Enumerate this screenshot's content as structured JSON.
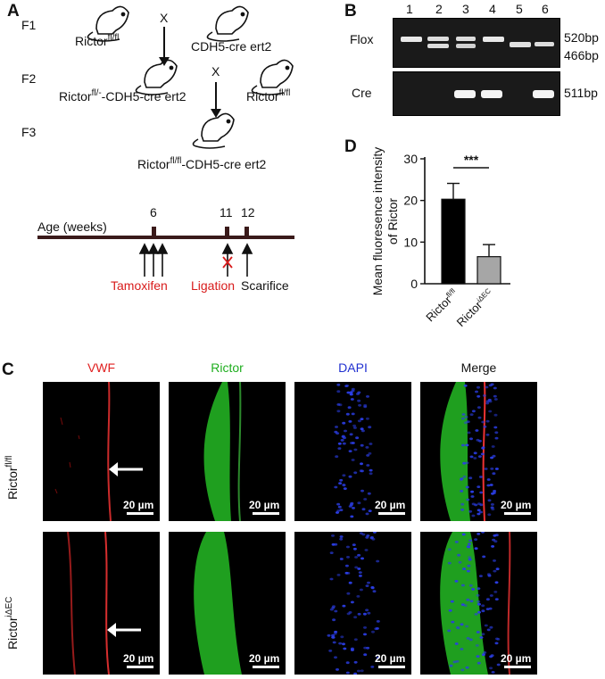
{
  "panelA": {
    "letter": "A",
    "gen_labels": [
      "F1",
      "F2",
      "F3"
    ],
    "cross_symbol": "X",
    "mouse_f1_left": "Rictor",
    "mouse_f1_left_sup": "fl/fl",
    "mouse_f1_right": "CDH5-cre ert2",
    "mouse_f2_left_pre": "Rictor",
    "mouse_f2_left_sup": "fl/-",
    "mouse_f2_left_post": "-CDH5-cre ert2",
    "mouse_f2_right": "Rictor",
    "mouse_f2_right_sup": "fl/fl",
    "mouse_f3_pre": "Rictor",
    "mouse_f3_sup": "fl/fl",
    "mouse_f3_post": "-CDH5-cre ert2",
    "timeline_label": "Age (weeks)",
    "ticks": [
      "6",
      "11",
      "12"
    ],
    "tamoxifen": "Tamoxifen",
    "ligation": "Ligation",
    "scarifice": "Scarifice"
  },
  "panelB": {
    "letter": "B",
    "lanes": [
      "1",
      "2",
      "3",
      "4",
      "5",
      "6"
    ],
    "flox_label": "Flox",
    "cre_label": "Cre",
    "bp_520": "520bp",
    "bp_466": "466bp",
    "bp_511": "511bp"
  },
  "panelD": {
    "letter": "D",
    "significance": "***"
  },
  "chart_data": {
    "type": "bar",
    "categories": [
      "Rictor fl/fl",
      "Rictor iΔEC"
    ],
    "values": [
      20.3,
      6.5
    ],
    "errors": [
      3.8,
      2.9
    ],
    "colors": [
      "#000000",
      "#a6a6a6"
    ],
    "ylabel": "Mean fluoresence intensity of Rictor",
    "ylim": [
      0,
      30
    ],
    "yticks": [
      "0",
      "10",
      "20",
      "30"
    ],
    "xtick_labels": [
      {
        "base": "Rictor",
        "sup": "fl/fl"
      },
      {
        "base": "Rictor",
        "sup": "iΔEC"
      }
    ]
  },
  "panelC": {
    "letter": "C",
    "columns": [
      "VWF",
      "Rictor",
      "DAPI",
      "Merge"
    ],
    "column_colors": [
      "#e02020",
      "#1fae1f",
      "#2030d0",
      "#111111"
    ],
    "row1_base": "Rictor",
    "row1_sup": "fl/fl",
    "row2_base": "Rictor",
    "row2_sup": "iΔEC",
    "scale_label": "20 µm"
  }
}
